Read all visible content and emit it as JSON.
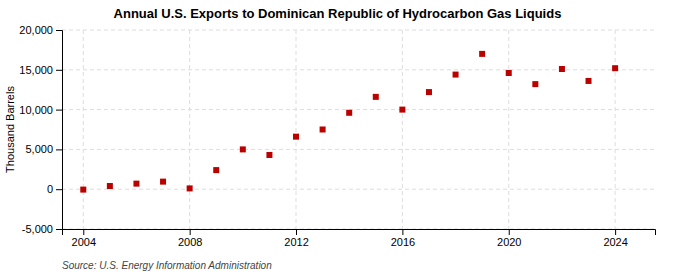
{
  "chart_data": {
    "type": "scatter",
    "title": "Annual U.S. Exports to Dominican Republic of Hydrocarbon Gas Liquids",
    "ylabel": "Thousand Barrels",
    "source": "Source: U.S. Energy Information Administration",
    "x": [
      2004,
      2005,
      2006,
      2007,
      2008,
      2009,
      2010,
      2011,
      2012,
      2013,
      2014,
      2015,
      2016,
      2017,
      2018,
      2019,
      2020,
      2021,
      2022,
      2023,
      2024
    ],
    "values": [
      -50,
      400,
      700,
      950,
      100,
      2400,
      5000,
      4300,
      6600,
      7500,
      9600,
      11600,
      10000,
      12200,
      14400,
      17000,
      14600,
      13200,
      15100,
      13600,
      15200
    ],
    "color": "#bb0000",
    "marker": "square",
    "xlim": [
      2003.2,
      2025.5
    ],
    "xticks": [
      2004,
      2008,
      2012,
      2016,
      2020,
      2024
    ],
    "ylim": [
      -5000,
      20000
    ],
    "yticks": [
      {
        "value": -5000,
        "label": "-5,000"
      },
      0,
      {
        "value": 5000,
        "label": "5,000"
      },
      {
        "value": 10000,
        "label": "10,000"
      },
      {
        "value": 15000,
        "label": "15,000"
      },
      {
        "value": 20000,
        "label": "20,000"
      }
    ],
    "grid": true
  }
}
